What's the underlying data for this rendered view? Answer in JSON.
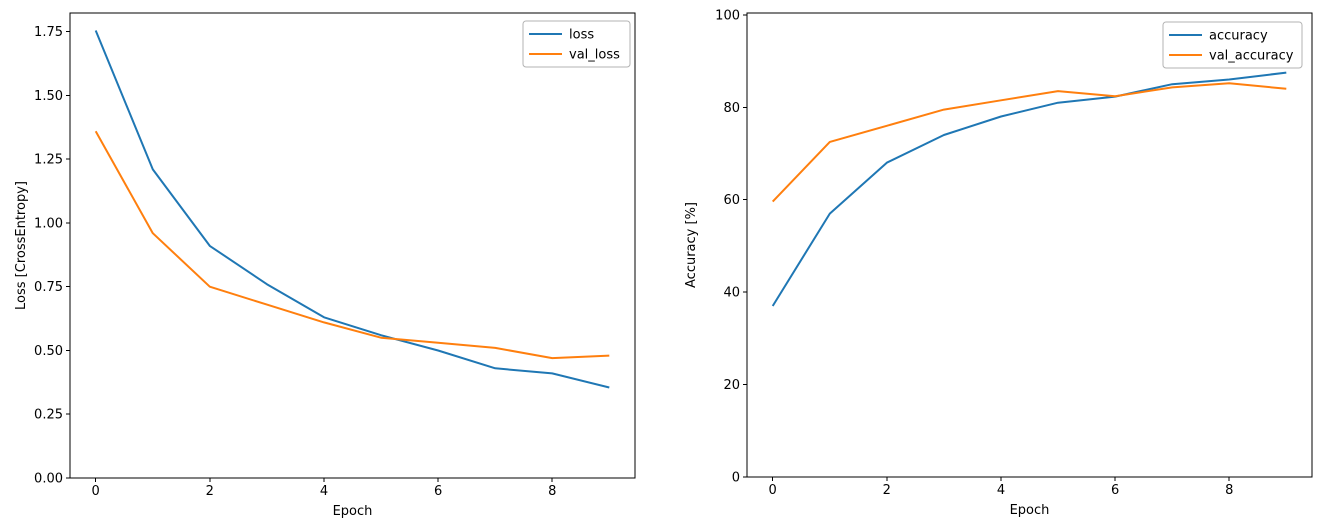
{
  "figure": {
    "background": "#ffffff",
    "text_color": "#000000",
    "legend_border_color": "#b3b3b3"
  },
  "chart_data": [
    {
      "type": "line",
      "title": "",
      "xlabel": "Epoch",
      "ylabel": "Loss [CrossEntropy]",
      "x": [
        0,
        1,
        2,
        3,
        4,
        5,
        6,
        7,
        8,
        9
      ],
      "series": [
        {
          "name": "loss",
          "color": "#1f77b4",
          "values": [
            1.755,
            1.21,
            0.91,
            0.76,
            0.63,
            0.56,
            0.5,
            0.43,
            0.41,
            0.355
          ]
        },
        {
          "name": "val_loss",
          "color": "#ff7f0e",
          "values": [
            1.36,
            0.96,
            0.75,
            0.68,
            0.61,
            0.55,
            0.53,
            0.51,
            0.47,
            0.48
          ]
        }
      ],
      "xlim": [
        -0.45,
        9.45
      ],
      "ylim": [
        0,
        1.8235
      ],
      "xticks": [
        0,
        2,
        4,
        6,
        8
      ],
      "yticks": [
        0.0,
        0.25,
        0.5,
        0.75,
        1.0,
        1.25,
        1.5,
        1.75
      ],
      "ytick_decimals": 2,
      "grid": false,
      "legend_position": "upper right",
      "legend_labels": [
        "loss",
        "val_loss"
      ]
    },
    {
      "type": "line",
      "title": "",
      "xlabel": "Epoch",
      "ylabel": "Accuracy [%]",
      "x": [
        0,
        1,
        2,
        3,
        4,
        5,
        6,
        7,
        8,
        9
      ],
      "series": [
        {
          "name": "accuracy",
          "color": "#1f77b4",
          "values": [
            37.0,
            57.0,
            68.0,
            74.0,
            78.0,
            81.0,
            82.3,
            85.0,
            86.0,
            87.5
          ]
        },
        {
          "name": "val_accuracy",
          "color": "#ff7f0e",
          "values": [
            59.6,
            72.5,
            76.0,
            79.5,
            81.5,
            83.5,
            82.4,
            84.3,
            85.2,
            84.0
          ]
        }
      ],
      "xlim": [
        -0.45,
        9.45
      ],
      "ylim": [
        0,
        100.4
      ],
      "xticks": [
        0,
        2,
        4,
        6,
        8
      ],
      "yticks": [
        0,
        20,
        40,
        60,
        80,
        100
      ],
      "ytick_decimals": 0,
      "grid": false,
      "legend_position": "upper right",
      "legend_labels": [
        "accuracy",
        "val_accuracy"
      ]
    }
  ]
}
